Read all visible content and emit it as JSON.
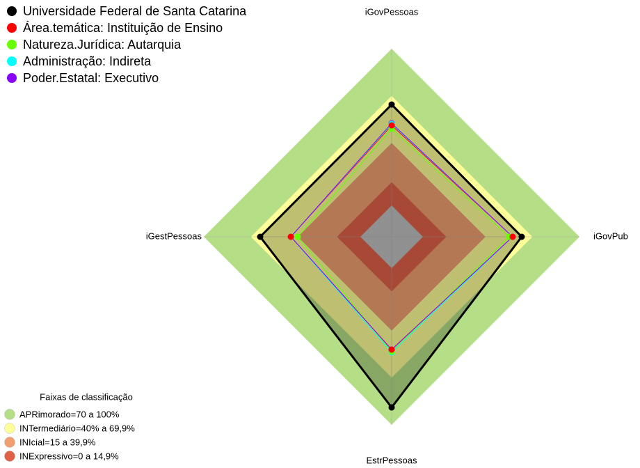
{
  "chart_data": {
    "type": "radar",
    "categories": [
      "iGovPessoas",
      "iGovPub",
      "EstrPessoas",
      "iGestPessoas"
    ],
    "rlim": [
      -20,
      100
    ],
    "series": [
      {
        "name": "Universidade Federal de Santa Catarina",
        "color": "#000000",
        "values": [
          64.4,
          63.1,
          88.9,
          64
        ]
      },
      {
        "name": "Área.temática: Instituição de Ensino",
        "color": "#ff0000",
        "values": [
          51.1,
          57.3,
          52,
          44.4
        ]
      },
      {
        "name": "Natureza.Jurídica: Autarquia",
        "color": "#66ff00",
        "values": [
          48.9,
          55,
          53.3,
          40
        ]
      },
      {
        "name": "Administração: Indireta",
        "color": "#00ffff",
        "values": [
          52,
          57.3,
          53.8,
          44.4
        ]
      },
      {
        "name": "Poder.Estatal: Executivo",
        "color": "#8800ff",
        "values": [
          52.4,
          57.3,
          52,
          44.4
        ]
      }
    ],
    "bands_title": "Faixas de classificação",
    "bands": [
      {
        "label": "APRimorado=70 a 100%",
        "from": 70,
        "to": 100,
        "color": "#b5df86"
      },
      {
        "label": "INTermediário=40% a 69,9%",
        "from": 40,
        "to": 69.9,
        "color": "#ffff99"
      },
      {
        "label": "INIcial=15 a 39,9%",
        "from": 15,
        "to": 39.9,
        "color": "#f0a070"
      },
      {
        "label": "INExpressivo=0 a 14,9%",
        "from": 0,
        "to": 14.9,
        "color": "#e06048"
      }
    ]
  }
}
